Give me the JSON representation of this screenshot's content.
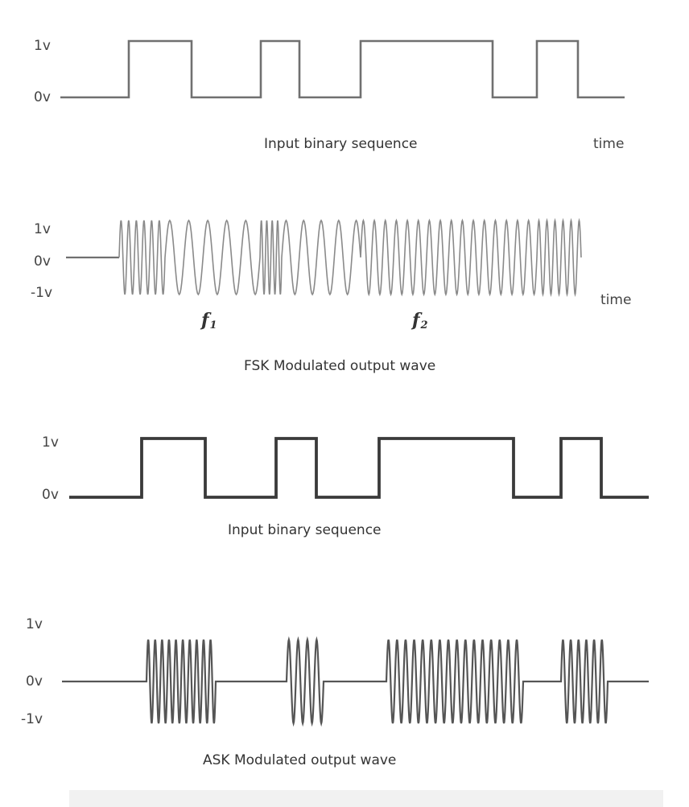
{
  "panel1": {
    "y_labels": [
      "1v",
      "0v"
    ],
    "title": "Input binary sequence",
    "time_label": "time"
  },
  "panel2": {
    "y_labels": [
      "1v",
      "0v",
      "-1v"
    ],
    "title": "FSK Modulated output wave",
    "time_label": "time",
    "freq_labels": [
      {
        "base": "f",
        "sub": "1"
      },
      {
        "base": "f",
        "sub": "2"
      }
    ]
  },
  "panel3": {
    "y_labels": [
      "1v",
      "0v"
    ],
    "title": "Input binary sequence"
  },
  "panel4": {
    "y_labels": [
      "1v",
      "0v",
      "-1v"
    ],
    "title": "ASK Modulated output wave"
  },
  "bit_sequence": [
    0,
    1,
    0,
    1,
    0,
    1,
    1,
    0,
    1,
    0
  ],
  "colors": {
    "background": "#ffffff",
    "thin_signal": "#707070",
    "thick_signal": "#3a3a3a",
    "text": "#444444"
  }
}
